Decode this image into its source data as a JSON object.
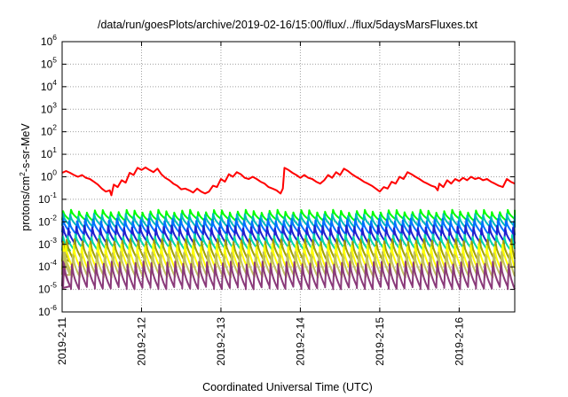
{
  "chart_data": {
    "type": "line",
    "title": "/data/run/goesPlots/archive/2019-02-16/15:00/flux/../flux/5daysMarsFluxes.txt",
    "xlabel": "Coordinated Universal Time (UTC)",
    "ylabel": {
      "pre": "protons/cm",
      "exp": "2",
      "post": "-s-sr-MeV"
    },
    "y_scale": "log",
    "ylim_exp": [
      -6,
      6
    ],
    "y_ticks": [
      {
        "base": "10",
        "exp": "-6"
      },
      {
        "base": "10",
        "exp": "-5"
      },
      {
        "base": "10",
        "exp": "-4"
      },
      {
        "base": "10",
        "exp": "-3"
      },
      {
        "base": "10",
        "exp": "-2"
      },
      {
        "base": "10",
        "exp": "-1"
      },
      {
        "base": "10",
        "exp": "0"
      },
      {
        "base": "10",
        "exp": "1"
      },
      {
        "base": "10",
        "exp": "2"
      },
      {
        "base": "10",
        "exp": "3"
      },
      {
        "base": "10",
        "exp": "4"
      },
      {
        "base": "10",
        "exp": "5"
      },
      {
        "base": "10",
        "exp": "6"
      }
    ],
    "x_tick_labels": [
      "2019-2-11",
      "2019-2-12",
      "2019-2-13",
      "2019-2-14",
      "2019-2-15",
      "2019-2-16"
    ],
    "x_range_days": [
      0,
      5.7
    ],
    "grid": true,
    "red_series": {
      "color": "#ff0000",
      "points": [
        [
          0.0,
          1.5
        ],
        [
          0.05,
          1.8
        ],
        [
          0.1,
          1.5
        ],
        [
          0.15,
          1.2
        ],
        [
          0.2,
          1.0
        ],
        [
          0.25,
          1.2
        ],
        [
          0.3,
          0.9
        ],
        [
          0.35,
          0.8
        ],
        [
          0.4,
          0.6
        ],
        [
          0.45,
          0.45
        ],
        [
          0.5,
          0.3
        ],
        [
          0.55,
          0.22
        ],
        [
          0.6,
          0.25
        ],
        [
          0.62,
          0.15
        ],
        [
          0.65,
          0.45
        ],
        [
          0.7,
          0.35
        ],
        [
          0.75,
          0.7
        ],
        [
          0.8,
          0.55
        ],
        [
          0.85,
          1.5
        ],
        [
          0.9,
          1.2
        ],
        [
          0.95,
          2.5
        ],
        [
          1.0,
          2.0
        ],
        [
          1.05,
          2.6
        ],
        [
          1.1,
          2.0
        ],
        [
          1.15,
          1.6
        ],
        [
          1.2,
          2.3
        ],
        [
          1.25,
          1.3
        ],
        [
          1.3,
          0.9
        ],
        [
          1.35,
          0.7
        ],
        [
          1.4,
          0.5
        ],
        [
          1.45,
          0.4
        ],
        [
          1.5,
          0.28
        ],
        [
          1.55,
          0.3
        ],
        [
          1.6,
          0.25
        ],
        [
          1.65,
          0.2
        ],
        [
          1.7,
          0.3
        ],
        [
          1.75,
          0.22
        ],
        [
          1.8,
          0.18
        ],
        [
          1.85,
          0.22
        ],
        [
          1.9,
          0.4
        ],
        [
          1.95,
          0.35
        ],
        [
          2.0,
          0.8
        ],
        [
          2.05,
          0.6
        ],
        [
          2.1,
          1.3
        ],
        [
          2.15,
          1.0
        ],
        [
          2.2,
          1.6
        ],
        [
          2.25,
          1.3
        ],
        [
          2.3,
          0.9
        ],
        [
          2.35,
          0.8
        ],
        [
          2.4,
          1.0
        ],
        [
          2.45,
          0.8
        ],
        [
          2.5,
          0.6
        ],
        [
          2.55,
          0.5
        ],
        [
          2.6,
          0.35
        ],
        [
          2.65,
          0.3
        ],
        [
          2.7,
          0.25
        ],
        [
          2.75,
          0.18
        ],
        [
          2.78,
          0.3
        ],
        [
          2.8,
          2.5
        ],
        [
          2.85,
          2.0
        ],
        [
          2.9,
          1.5
        ],
        [
          2.95,
          1.2
        ],
        [
          3.0,
          0.9
        ],
        [
          3.05,
          1.2
        ],
        [
          3.1,
          0.9
        ],
        [
          3.15,
          0.8
        ],
        [
          3.2,
          0.6
        ],
        [
          3.25,
          0.5
        ],
        [
          3.3,
          0.7
        ],
        [
          3.35,
          1.2
        ],
        [
          3.4,
          0.9
        ],
        [
          3.45,
          1.6
        ],
        [
          3.5,
          1.2
        ],
        [
          3.55,
          2.3
        ],
        [
          3.6,
          1.8
        ],
        [
          3.65,
          1.3
        ],
        [
          3.7,
          1.0
        ],
        [
          3.75,
          0.8
        ],
        [
          3.8,
          0.6
        ],
        [
          3.85,
          0.5
        ],
        [
          3.9,
          0.4
        ],
        [
          3.95,
          0.3
        ],
        [
          4.0,
          0.22
        ],
        [
          4.05,
          0.35
        ],
        [
          4.1,
          0.3
        ],
        [
          4.15,
          0.6
        ],
        [
          4.2,
          0.5
        ],
        [
          4.25,
          1.0
        ],
        [
          4.3,
          0.8
        ],
        [
          4.35,
          1.6
        ],
        [
          4.4,
          1.3
        ],
        [
          4.45,
          1.0
        ],
        [
          4.5,
          0.8
        ],
        [
          4.55,
          0.6
        ],
        [
          4.6,
          0.5
        ],
        [
          4.65,
          0.4
        ],
        [
          4.7,
          0.35
        ],
        [
          4.73,
          0.25
        ],
        [
          4.75,
          0.5
        ],
        [
          4.8,
          0.35
        ],
        [
          4.85,
          0.7
        ],
        [
          4.9,
          0.5
        ],
        [
          4.95,
          0.8
        ],
        [
          5.0,
          0.65
        ],
        [
          5.05,
          0.9
        ],
        [
          5.1,
          0.7
        ],
        [
          5.15,
          1.0
        ],
        [
          5.2,
          0.8
        ],
        [
          5.25,
          0.9
        ],
        [
          5.3,
          0.7
        ],
        [
          5.35,
          0.8
        ],
        [
          5.4,
          0.6
        ],
        [
          5.45,
          0.5
        ],
        [
          5.5,
          0.4
        ],
        [
          5.55,
          0.35
        ],
        [
          5.6,
          0.8
        ],
        [
          5.65,
          0.6
        ],
        [
          5.7,
          0.5
        ]
      ]
    },
    "sawtooth_series": [
      {
        "color": "#00ff00",
        "peak": 0.03,
        "trough": 0.012
      },
      {
        "color": "#00bbbb",
        "peak": 0.02,
        "trough": 0.006
      },
      {
        "color": "#0070ff",
        "peak": 0.012,
        "trough": 0.003
      },
      {
        "color": "#2020d0",
        "peak": 0.006,
        "trough": 0.0012
      },
      {
        "color": "#00d8a8",
        "peak": 0.0025,
        "trough": 0.0006
      },
      {
        "color": "#a0a000",
        "peak": 0.0015,
        "trough": 0.0002
      },
      {
        "color": "#ffff00",
        "peak": 0.0009,
        "trough": 8e-05
      },
      {
        "color": "#c0c060",
        "peak": 0.0004,
        "trough": 4e-05
      },
      {
        "color": "#8a3a7a",
        "peak": 0.00015,
        "trough": 1.2e-05
      }
    ],
    "sawtooth_period_days": 0.1
  }
}
